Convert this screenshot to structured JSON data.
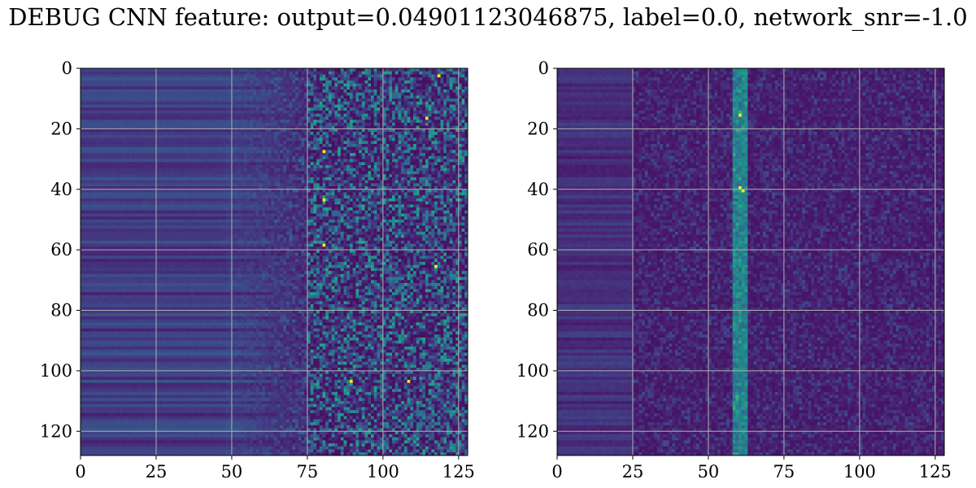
{
  "title": "DEBUG CNN feature: output=0.04901123046875, label=0.0, network_snr=-1.0",
  "colors": {
    "grid": "#b0b0b0",
    "colormap": "viridis"
  },
  "chart_data": [
    {
      "type": "heatmap",
      "title": "",
      "xlabel": "",
      "ylabel": "",
      "x_range": [
        0,
        128
      ],
      "y_range": [
        0,
        128
      ],
      "y_inverted": true,
      "xticks": [
        0,
        25,
        50,
        75,
        100,
        125
      ],
      "yticks": [
        0,
        20,
        40,
        60,
        80,
        100,
        120
      ],
      "grid": true,
      "colormap": "viridis",
      "pattern": "smooth horizontal bands for x<~50, noisy high-intensity speckle for x>~75",
      "hotspots": [
        [
          118,
          2
        ],
        [
          114,
          16
        ],
        [
          80,
          27
        ],
        [
          80,
          43
        ],
        [
          80,
          58
        ],
        [
          117,
          65
        ],
        [
          89,
          103
        ],
        [
          108,
          103
        ]
      ]
    },
    {
      "type": "heatmap",
      "title": "",
      "xlabel": "",
      "ylabel": "",
      "x_range": [
        0,
        128
      ],
      "y_range": [
        0,
        128
      ],
      "y_inverted": true,
      "xticks": [
        0,
        25,
        50,
        75,
        100,
        125
      ],
      "yticks": [
        0,
        20,
        40,
        60,
        80,
        100,
        120
      ],
      "grid": true,
      "colormap": "viridis",
      "pattern": "mostly dark low values with a brighter vertical stripe near x=60",
      "hotspots": [
        [
          60,
          15
        ],
        [
          60,
          39
        ],
        [
          61,
          40
        ]
      ]
    }
  ]
}
